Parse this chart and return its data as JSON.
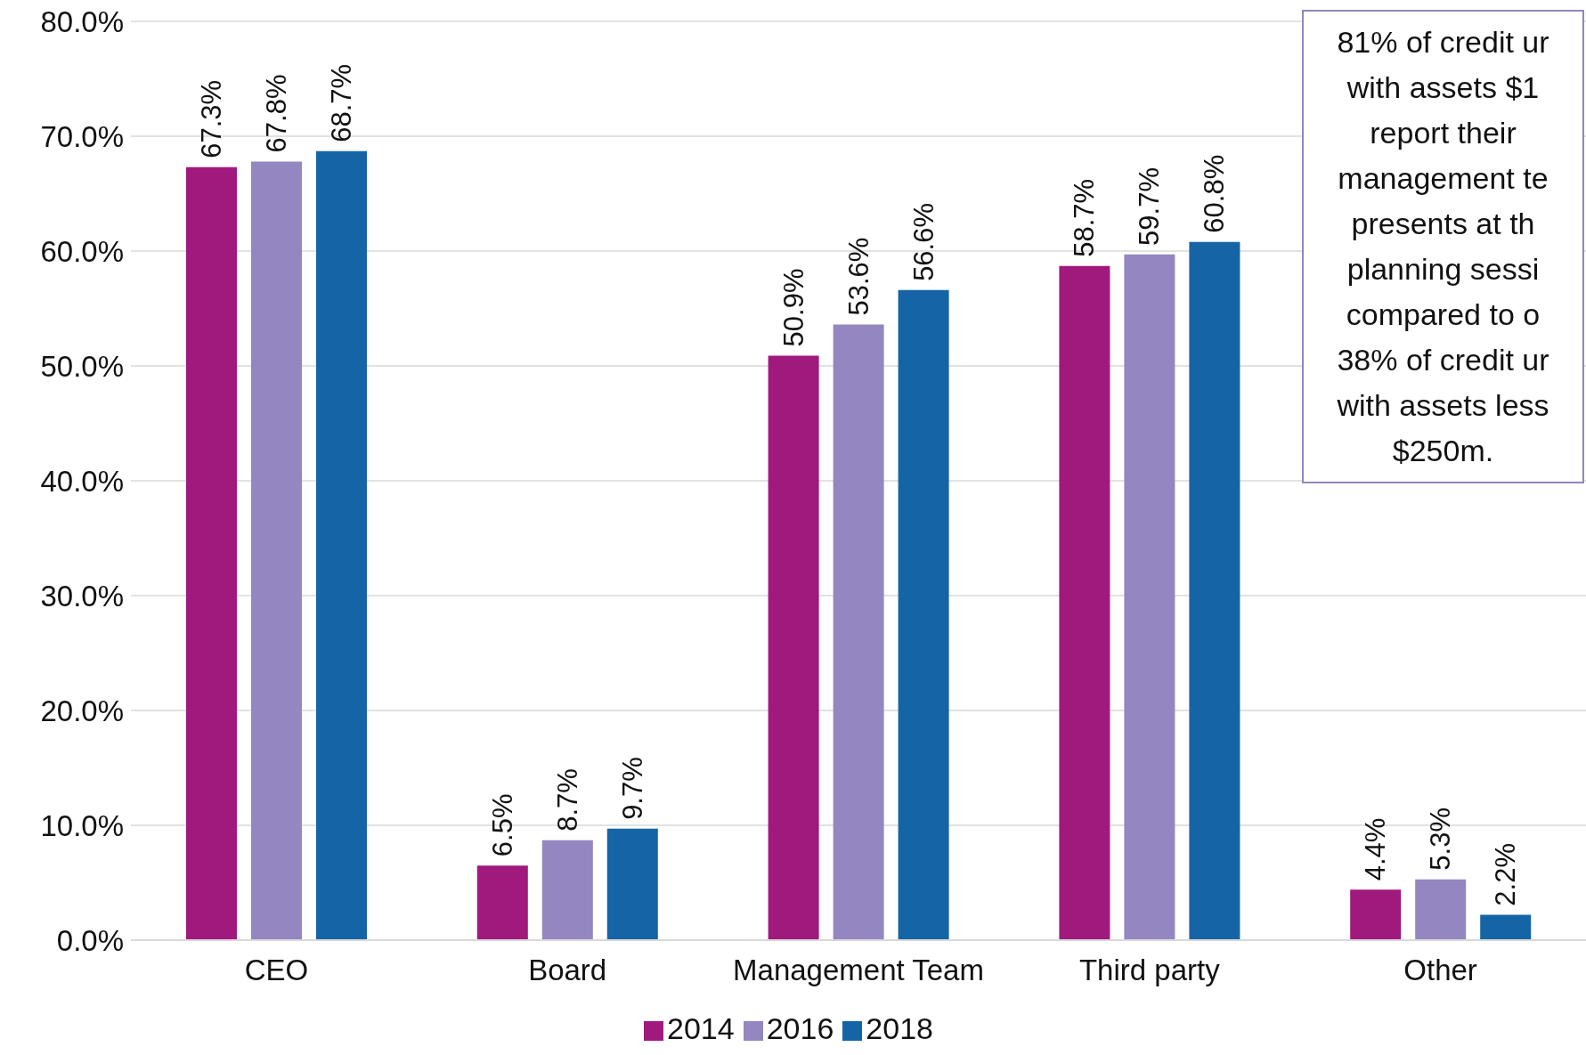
{
  "chart_data": {
    "type": "bar",
    "categories": [
      "CEO",
      "Board",
      "Management Team",
      "Third party",
      "Other"
    ],
    "series": [
      {
        "name": "2014",
        "color": "#a0197d",
        "values": [
          67.3,
          6.5,
          50.9,
          58.7,
          4.4
        ],
        "value_labels": [
          "67.3%",
          "6.5%",
          "50.9%",
          "58.7%",
          "4.4%"
        ]
      },
      {
        "name": "2016",
        "color": "#9486c0",
        "values": [
          67.8,
          8.7,
          53.6,
          59.7,
          5.3
        ],
        "value_labels": [
          "67.8%",
          "8.7%",
          "53.6%",
          "59.7%",
          "5.3%"
        ]
      },
      {
        "name": "2018",
        "color": "#1565a6",
        "values": [
          68.7,
          9.7,
          56.6,
          60.8,
          2.2
        ],
        "value_labels": [
          "68.7%",
          "9.7%",
          "56.6%",
          "60.8%",
          "2.2%"
        ]
      }
    ],
    "ylim": [
      0,
      80
    ],
    "yticks": [
      {
        "value": 0,
        "label": "0.0%"
      },
      {
        "value": 10,
        "label": "10.0%"
      },
      {
        "value": 20,
        "label": "20.0%"
      },
      {
        "value": 30,
        "label": "30.0%"
      },
      {
        "value": 40,
        "label": "40.0%"
      },
      {
        "value": 50,
        "label": "50.0%"
      },
      {
        "value": 60,
        "label": "60.0%"
      },
      {
        "value": 70,
        "label": "70.0%"
      },
      {
        "value": 80,
        "label": "80.0%"
      }
    ],
    "grid": "y",
    "legend": "bottom",
    "annotations": [
      "81% of credit ur\nwith assets $1\nreport their\nmanagement te\npresents at th\nplanning sessi\ncompared to o\n38% of credit ur\nwith assets less\n$250m."
    ]
  }
}
